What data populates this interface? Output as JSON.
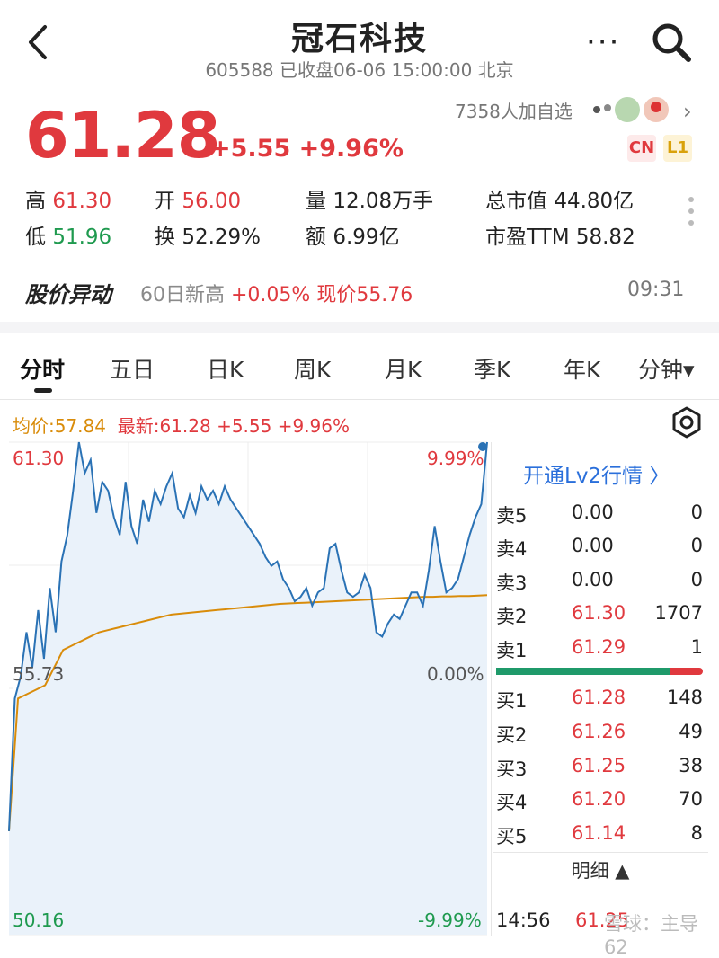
{
  "header": {
    "title": "冠石科技",
    "subtitle": "605588 已收盘06-06 15:00:00 北京",
    "icons": [
      "back-icon",
      "more-icon",
      "search-icon"
    ]
  },
  "quote": {
    "price": "61.28",
    "change": "+5.55 +9.96%",
    "watchlist": "7358人加自选",
    "tag_cn": "CN",
    "tag_l1": "L1"
  },
  "stats": {
    "high_label": "高",
    "high": "61.30",
    "open_label": "开",
    "open": "56.00",
    "volume_label": "量",
    "volume": "12.08万手",
    "mktcap_label": "总市值",
    "mktcap": "44.80亿",
    "low_label": "低",
    "low": "51.96",
    "turnover_label": "换",
    "turnover": "52.29%",
    "amount_label": "额",
    "amount": "6.99亿",
    "pe_label": "市盈TTM",
    "pe": "58.82"
  },
  "anomaly": {
    "title": "股价异动",
    "text_prefix": "60日新高",
    "text_highlight": "+0.05% 现价55.76",
    "time": "09:31"
  },
  "tabs": [
    "分时",
    "五日",
    "日K",
    "周K",
    "月K",
    "季K",
    "年K",
    "分钟▾"
  ],
  "chart_header": {
    "avg": "均价:57.84",
    "latest": "最新:61.28 +5.55 +9.96%"
  },
  "chart_labels": {
    "y_top": "61.30",
    "y_mid": "55.73",
    "y_bot": "50.16",
    "pct_top": "9.99%",
    "pct_mid": "0.00%",
    "pct_bot": "-9.99%"
  },
  "chart_data": {
    "type": "line",
    "ylim": [
      50.16,
      61.3
    ],
    "base": 55.73,
    "series": [
      {
        "name": "",
        "values": [
          52.5,
          55.5,
          56.0,
          57.0,
          56.2,
          57.5,
          56.4,
          58.0,
          57.0,
          58.6,
          59.2,
          60.2,
          61.3,
          60.6,
          60.9,
          59.7,
          60.4,
          60.2,
          59.6,
          59.2,
          60.4,
          59.4,
          59.0,
          60.0,
          59.5,
          60.2,
          59.9,
          60.3,
          60.6,
          59.8,
          59.6,
          60.1,
          59.7,
          60.3,
          60.0,
          60.2,
          59.9,
          60.3,
          60.0,
          59.8,
          59.6,
          59.4,
          59.2,
          59.0,
          58.7,
          58.5,
          58.6,
          58.2,
          58.0,
          57.7,
          57.8,
          58.0,
          57.6,
          57.9,
          58.0,
          58.9,
          59.0,
          58.4,
          57.9,
          57.8,
          57.9,
          58.3,
          58.0,
          57.0,
          56.9,
          57.2,
          57.4,
          57.3,
          57.6,
          57.9,
          57.9,
          57.6,
          58.4,
          59.4,
          58.6,
          57.9,
          58.0,
          58.2,
          58.7,
          59.2,
          59.6,
          59.9,
          61.3
        ]
      },
      {
        "name": "",
        "values": [
          52.5,
          55.5,
          55.6,
          55.7,
          55.8,
          56.2,
          56.6,
          56.7,
          56.8,
          56.9,
          57.0,
          57.05,
          57.1,
          57.15,
          57.2,
          57.25,
          57.3,
          57.35,
          57.4,
          57.42,
          57.44,
          57.46,
          57.48,
          57.5,
          57.52,
          57.54,
          57.56,
          57.58,
          57.6,
          57.62,
          57.64,
          57.65,
          57.66,
          57.67,
          57.68,
          57.69,
          57.7,
          57.71,
          57.72,
          57.73,
          57.74,
          57.75,
          57.76,
          57.77,
          57.78,
          57.79,
          57.8,
          57.8,
          57.81,
          57.81,
          57.82,
          57.82,
          57.83,
          57.84
        ]
      }
    ]
  },
  "orderbook": {
    "lv2_link": "开通Lv2行情 〉",
    "asks": [
      {
        "name": "卖5",
        "price": "0.00",
        "vol": "0"
      },
      {
        "name": "卖4",
        "price": "0.00",
        "vol": "0"
      },
      {
        "name": "卖3",
        "price": "0.00",
        "vol": "0"
      },
      {
        "name": "卖2",
        "price": "61.30",
        "vol": "1707"
      },
      {
        "name": "卖1",
        "price": "61.29",
        "vol": "1"
      }
    ],
    "bids": [
      {
        "name": "买1",
        "price": "61.28",
        "vol": "148"
      },
      {
        "name": "买2",
        "price": "61.26",
        "vol": "49"
      },
      {
        "name": "买3",
        "price": "61.25",
        "vol": "38"
      },
      {
        "name": "买4",
        "price": "61.20",
        "vol": "70"
      },
      {
        "name": "买5",
        "price": "61.14",
        "vol": "8"
      }
    ],
    "bid_ratio": 0.84,
    "detail": "明细 ▲",
    "last_tick_time": "14:56",
    "last_tick_price": "61.25"
  },
  "watermark": "雪球：主导62",
  "colors": {
    "up": "#e0393e",
    "down": "#1f9a4f",
    "avg_line": "#d98c0a",
    "price_line": "#2a72b5",
    "link": "#2a6fdb"
  }
}
